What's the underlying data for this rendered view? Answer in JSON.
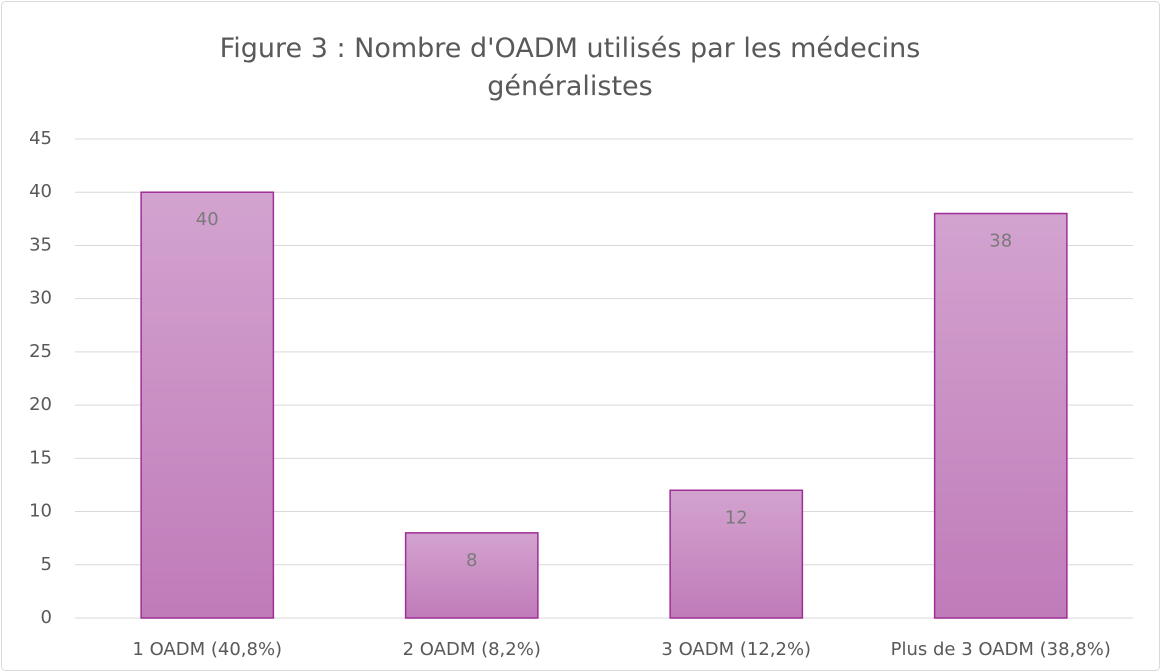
{
  "chart_data": {
    "type": "bar",
    "title": "Figure 3 : Nombre d'OADM utilisés par les médecins généralistes",
    "categories": [
      "1 OADM (40,8%)",
      "2 OADM (8,2%)",
      "3 OADM (12,2%)",
      "Plus de 3 OADM (38,8%)"
    ],
    "values": [
      40,
      8,
      12,
      38
    ],
    "color": "#c68ac1",
    "ylim": [
      0,
      45
    ],
    "yticks": [
      0,
      5,
      10,
      15,
      20,
      25,
      30,
      35,
      40,
      45
    ],
    "grid": true
  }
}
